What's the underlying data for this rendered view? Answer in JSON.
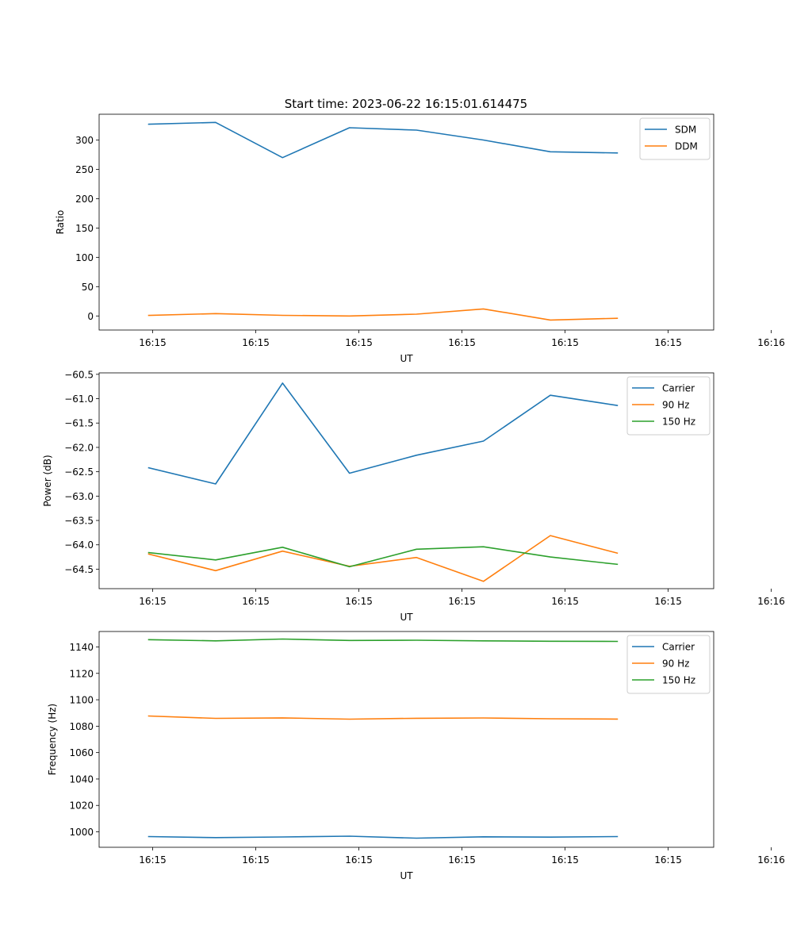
{
  "figure": {
    "title": "Start time: 2023-06-22 16:15:01.614475"
  },
  "chart_data": [
    {
      "type": "line",
      "xlabel": "UT",
      "ylabel": "Ratio",
      "x_tick_labels": [
        "16:15",
        "16:15",
        "16:15",
        "16:15",
        "16:15",
        "16:15",
        "16:16"
      ],
      "x": [
        1,
        2,
        3,
        4,
        5,
        6,
        7,
        8
      ],
      "xlim": [
        0.26,
        9.44
      ],
      "ylim": [
        -24,
        344
      ],
      "y_ticks": [
        0,
        50,
        100,
        150,
        200,
        250,
        300
      ],
      "y_tick_labels": [
        "0",
        "50",
        "100",
        "150",
        "200",
        "250",
        "300"
      ],
      "legend": "top-right",
      "series": [
        {
          "name": "SDM",
          "color": "#1f77b4",
          "values": [
            327,
            330,
            270,
            321,
            317,
            300,
            280,
            278
          ]
        },
        {
          "name": "DDM",
          "color": "#ff7f0e",
          "values": [
            1,
            4,
            1,
            0,
            3,
            12,
            -7,
            -4
          ]
        }
      ]
    },
    {
      "type": "line",
      "xlabel": "UT",
      "ylabel": "Power (dB)",
      "x_tick_labels": [
        "16:15",
        "16:15",
        "16:15",
        "16:15",
        "16:15",
        "16:15",
        "16:16"
      ],
      "x": [
        1,
        2,
        3,
        4,
        5,
        6,
        7,
        8
      ],
      "xlim": [
        0.26,
        9.44
      ],
      "ylim": [
        -64.9,
        -60.47
      ],
      "y_ticks": [
        -64.5,
        -64.0,
        -63.5,
        -63.0,
        -62.5,
        -62.0,
        -61.5,
        -61.0,
        -60.5
      ],
      "y_tick_labels": [
        "−64.5",
        "−64.0",
        "−63.5",
        "−63.0",
        "−62.5",
        "−62.0",
        "−61.5",
        "−61.0",
        "−60.5"
      ],
      "legend": "top-right",
      "series": [
        {
          "name": "Carrier",
          "color": "#1f77b4",
          "values": [
            -62.42,
            -62.75,
            -60.68,
            -62.53,
            -62.16,
            -61.87,
            -60.93,
            -61.14
          ]
        },
        {
          "name": "90 Hz",
          "color": "#ff7f0e",
          "values": [
            -64.19,
            -64.53,
            -64.13,
            -64.44,
            -64.26,
            -64.75,
            -63.81,
            -64.17
          ]
        },
        {
          "name": "150 Hz",
          "color": "#2ca02c",
          "values": [
            -64.16,
            -64.31,
            -64.05,
            -64.45,
            -64.09,
            -64.04,
            -64.25,
            -64.4
          ]
        }
      ]
    },
    {
      "type": "line",
      "xlabel": "UT",
      "ylabel": "Frequency (Hz)",
      "x_tick_labels": [
        "16:15",
        "16:15",
        "16:15",
        "16:15",
        "16:15",
        "16:15",
        "16:16"
      ],
      "x": [
        1,
        2,
        3,
        4,
        5,
        6,
        7,
        8
      ],
      "xlim": [
        0.26,
        9.44
      ],
      "ylim": [
        988.3,
        1151.7
      ],
      "y_ticks": [
        1000,
        1020,
        1040,
        1060,
        1080,
        1100,
        1120,
        1140
      ],
      "y_tick_labels": [
        "1000",
        "1020",
        "1040",
        "1060",
        "1080",
        "1100",
        "1120",
        "1140"
      ],
      "legend": "top-right",
      "series": [
        {
          "name": "Carrier",
          "color": "#1f77b4",
          "values": [
            996.4,
            995.6,
            996.1,
            996.7,
            995.2,
            996.2,
            996.0,
            996.4
          ]
        },
        {
          "name": "90 Hz",
          "color": "#ff7f0e",
          "values": [
            1087.7,
            1085.9,
            1086.3,
            1085.3,
            1086.0,
            1086.2,
            1085.6,
            1085.4
          ]
        },
        {
          "name": "150 Hz",
          "color": "#2ca02c",
          "values": [
            1145.5,
            1144.6,
            1146.0,
            1144.9,
            1145.1,
            1144.6,
            1144.3,
            1144.2
          ]
        }
      ]
    }
  ]
}
